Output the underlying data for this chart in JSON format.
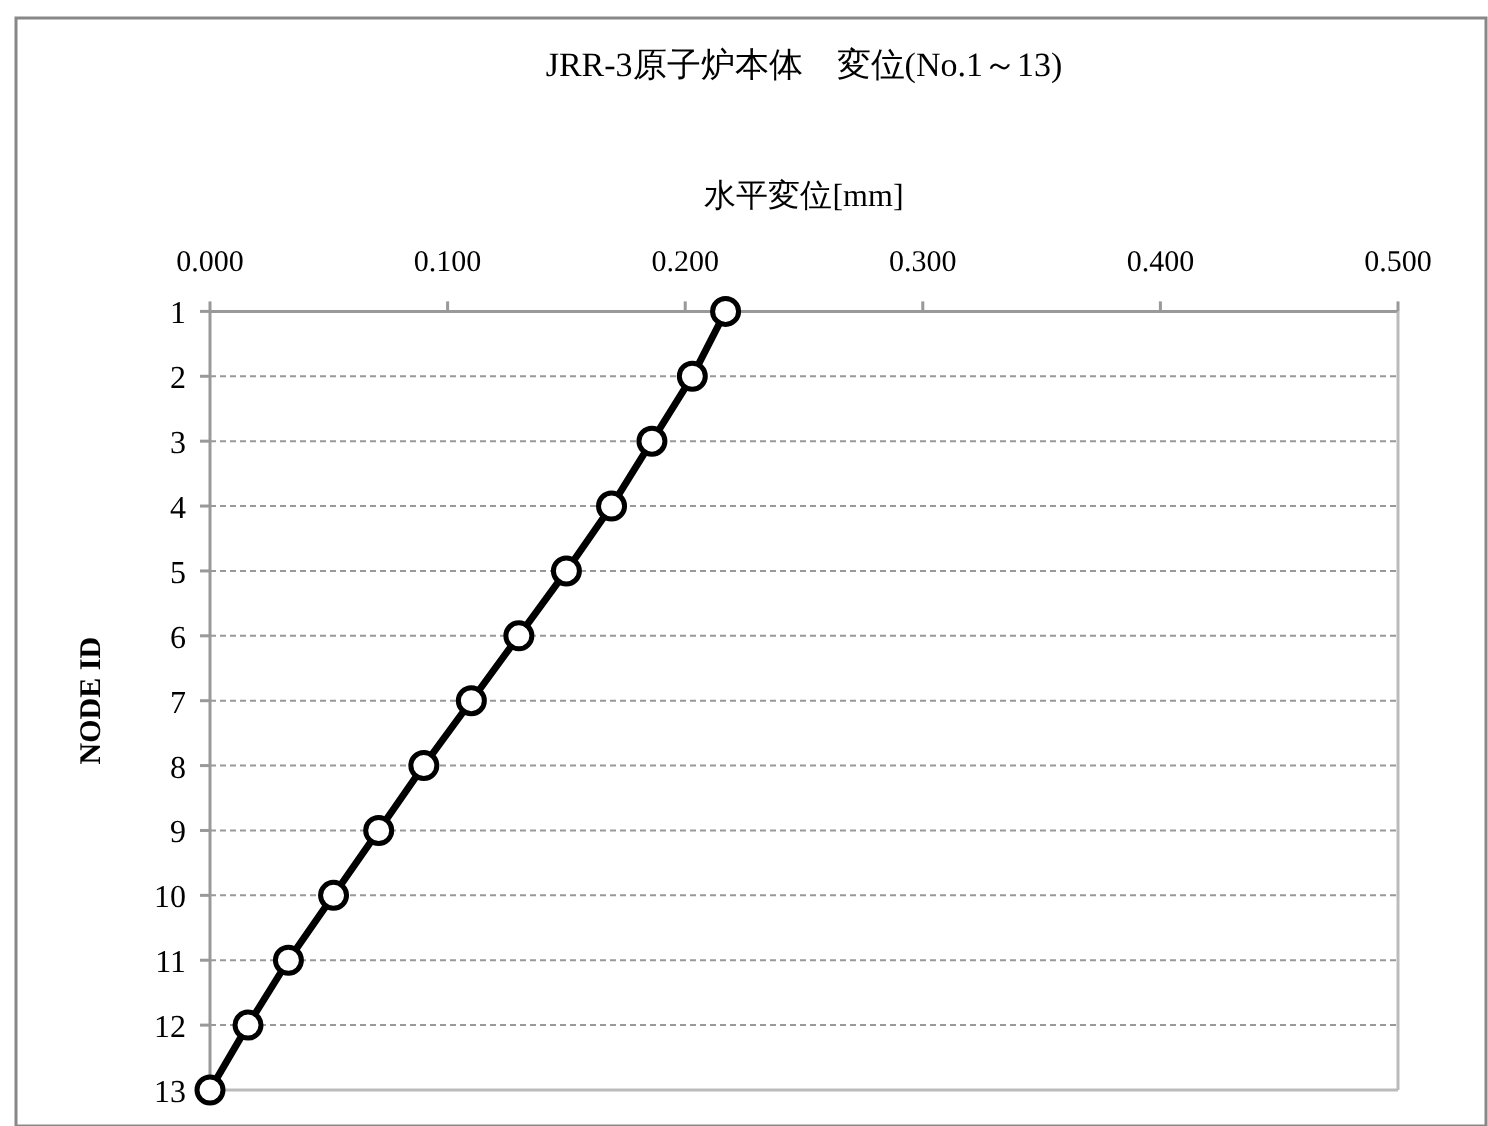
{
  "chart_data": {
    "type": "line",
    "orientation": "horizontal",
    "title": "JRR-3原子炉本体　変位(No.1～13)",
    "xlabel": "水平変位[mm]",
    "ylabel": "NODE ID",
    "categories": [
      "1",
      "2",
      "3",
      "4",
      "5",
      "6",
      "7",
      "8",
      "9",
      "10",
      "11",
      "12",
      "13"
    ],
    "values": [
      0.217,
      0.203,
      0.186,
      0.169,
      0.15,
      0.13,
      0.11,
      0.09,
      0.071,
      0.052,
      0.033,
      0.016,
      0.0
    ],
    "color": "#000000",
    "marker": "circle",
    "line_style": "solid",
    "grid": "y",
    "xlim": [
      0,
      0.5
    ],
    "xticks": [
      {
        "value": 0,
        "label": "0.000"
      },
      {
        "value": 0.1,
        "label": "0.100"
      },
      {
        "value": 0.2,
        "label": "0.200"
      },
      {
        "value": 0.3,
        "label": "0.300"
      },
      {
        "value": 0.4,
        "label": "0.400"
      },
      {
        "value": 0.5,
        "label": "0.500"
      }
    ]
  }
}
